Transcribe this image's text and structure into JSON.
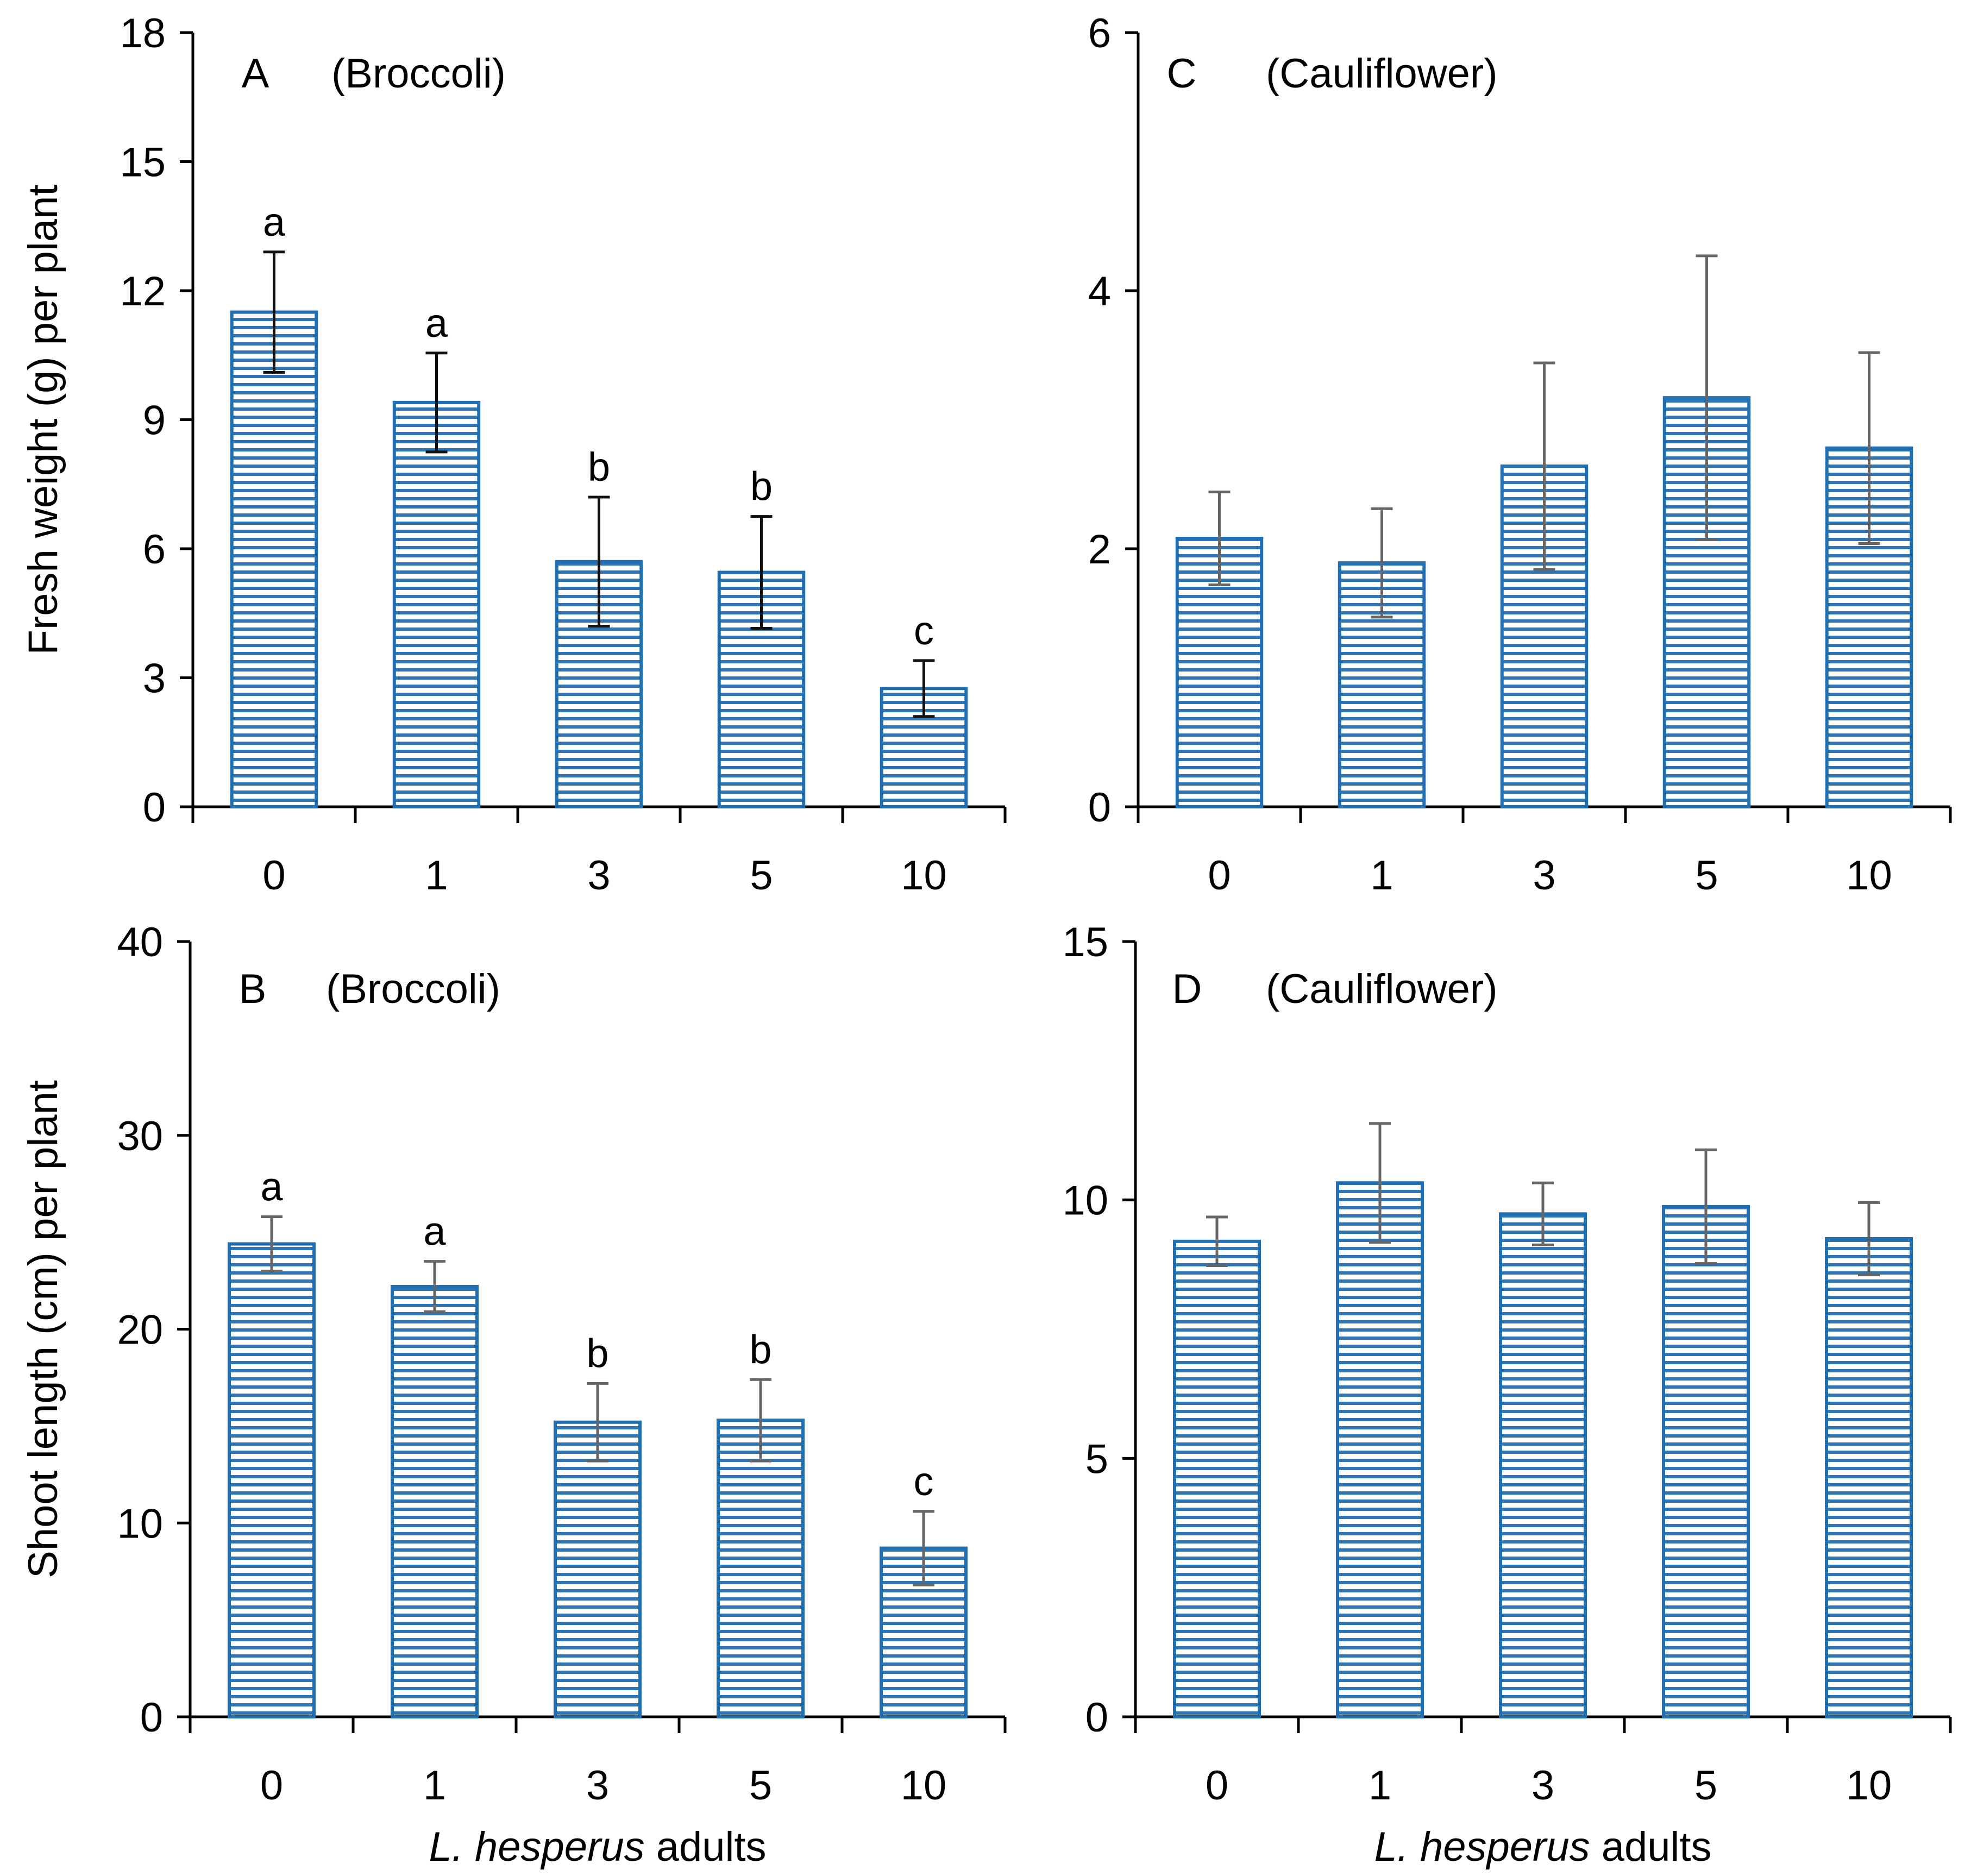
{
  "chart_data": [
    {
      "type": "bar",
      "panel": "A",
      "title": "(Broccoli)",
      "xlabel": "",
      "ylabel": "Fresh weight (g) per plant",
      "categories": [
        "0",
        "1",
        "3",
        "5",
        "10"
      ],
      "values": [
        11.5,
        9.4,
        5.7,
        5.45,
        2.75
      ],
      "errors": [
        1.4,
        1.15,
        1.5,
        1.3,
        0.65
      ],
      "significance": [
        "a",
        "a",
        "b",
        "b",
        "c"
      ],
      "yticks": [
        "0",
        "3",
        "6",
        "9",
        "12",
        "15",
        "18"
      ],
      "ylim": [
        0,
        18
      ],
      "error_color": "#111111"
    },
    {
      "type": "bar",
      "panel": "C",
      "title": "(Cauliflower)",
      "xlabel": "",
      "ylabel": "",
      "categories": [
        "0",
        "1",
        "3",
        "5",
        "10"
      ],
      "values": [
        2.08,
        1.89,
        2.64,
        3.17,
        2.78
      ],
      "errors": [
        0.36,
        0.42,
        0.8,
        1.1,
        0.74
      ],
      "significance": [],
      "yticks": [
        "0",
        "2",
        "4",
        "6"
      ],
      "ylim": [
        0,
        6
      ],
      "error_color": "#666666"
    },
    {
      "type": "bar",
      "panel": "B",
      "title": "(Broccoli)",
      "xlabel_italic": "L. hesperus",
      "xlabel_rest": " adults",
      "ylabel": "Shoot length (cm) per plant",
      "categories": [
        "0",
        "1",
        "3",
        "5",
        "10"
      ],
      "values": [
        24.4,
        22.2,
        15.2,
        15.3,
        8.7
      ],
      "errors": [
        1.4,
        1.3,
        2.0,
        2.1,
        1.9
      ],
      "significance": [
        "a",
        "a",
        "b",
        "b",
        "c"
      ],
      "yticks": [
        "0",
        "10",
        "20",
        "30",
        "40"
      ],
      "ylim": [
        0,
        40
      ],
      "error_color": "#666666"
    },
    {
      "type": "bar",
      "panel": "D",
      "title": "(Cauliflower)",
      "xlabel_italic": "L. hesperus",
      "xlabel_rest": " adults",
      "ylabel": "",
      "categories": [
        "0",
        "1",
        "3",
        "5",
        "10"
      ],
      "values": [
        9.2,
        10.33,
        9.73,
        9.87,
        9.25
      ],
      "errors": [
        0.47,
        1.15,
        0.6,
        1.1,
        0.7
      ],
      "significance": [],
      "yticks": [
        "0",
        "5",
        "10",
        "15"
      ],
      "ylim": [
        0,
        15
      ],
      "error_color": "#666666"
    }
  ],
  "colors": {
    "bar_stroke": "#1f6fb2",
    "bar_stripe": "#2e75b6",
    "bar_fill": "#ffffff",
    "axis": "#000000"
  }
}
